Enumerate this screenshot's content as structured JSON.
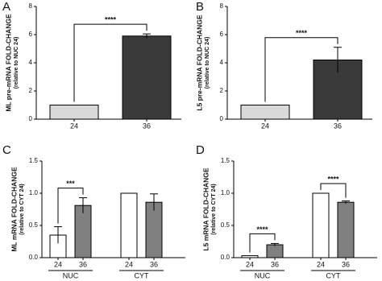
{
  "chart_data": [
    {
      "type": "bar",
      "panel_label": "A",
      "ylabel": "ML pre-mRNA FOLD-CHANGE",
      "ylabel_sub": "(relative to NUC 24)",
      "categories": [
        "24",
        "36"
      ],
      "values": [
        1,
        5.9
      ],
      "errors": [
        null,
        0.15
      ],
      "colors": [
        "#d9d9d9",
        "#3a3a3a"
      ],
      "annotation": "****",
      "ylim": [
        0,
        8
      ],
      "yticks": [
        0,
        2,
        4,
        6,
        8
      ]
    },
    {
      "type": "bar",
      "panel_label": "B",
      "ylabel": "L5 pre-mRNA FOLD-CHANGE",
      "ylabel_sub": "(relative to NUC 24)",
      "categories": [
        "24",
        "36"
      ],
      "values": [
        1,
        4.2
      ],
      "errors": [
        null,
        0.9
      ],
      "colors": [
        "#d9d9d9",
        "#3a3a3a"
      ],
      "annotation": "****",
      "ylim": [
        0,
        8
      ],
      "yticks": [
        0,
        2,
        4,
        6,
        8
      ]
    },
    {
      "type": "bar",
      "panel_label": "C",
      "ylabel": "ML mRNA FOLD-CHANGE",
      "ylabel_sub": "(relative to CYT 24)",
      "categories": [
        "24",
        "36",
        "24",
        "36"
      ],
      "values": [
        0.35,
        0.81,
        1.0,
        0.86
      ],
      "errors": [
        0.13,
        0.12,
        null,
        0.13
      ],
      "colors": [
        "#ffffff",
        "#808080",
        "#ffffff",
        "#808080"
      ],
      "groups": [
        {
          "name": "NUC",
          "annotation": "***"
        },
        {
          "name": "CYT"
        }
      ],
      "ylim": [
        0,
        1.5
      ],
      "yticks": [
        {
          "value": 0,
          "label": "0.0"
        },
        0.5,
        {
          "value": 1,
          "label": "1.0"
        },
        1.5
      ]
    },
    {
      "type": "bar",
      "panel_label": "D",
      "ylabel": "L5 mRNA FOLD-CHANGE",
      "ylabel_sub": "(relative to CYT 24)",
      "categories": [
        "24",
        "36",
        "24",
        "36"
      ],
      "values": [
        0.03,
        0.2,
        1.0,
        0.86
      ],
      "errors": [
        null,
        0.02,
        null,
        0.02
      ],
      "colors": [
        "#ffffff",
        "#808080",
        "#ffffff",
        "#808080"
      ],
      "groups": [
        {
          "name": "NUC",
          "annotation": "****"
        },
        {
          "name": "CYT",
          "annotation": "****"
        }
      ],
      "ylim": [
        0,
        1.5
      ],
      "yticks": [
        {
          "value": 0,
          "label": "0.0"
        },
        0.5,
        {
          "value": 1,
          "label": "1.0"
        },
        1.5
      ]
    }
  ]
}
